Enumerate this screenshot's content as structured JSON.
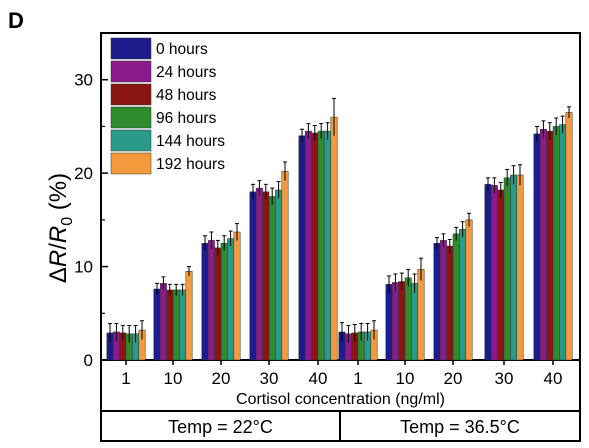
{
  "panel_label": "D",
  "chart_data": {
    "type": "bar",
    "ylabel": {
      "delta": "Δ",
      "r": "R",
      "slash": "/",
      "r0": "R",
      "sub": "0",
      "unit": " (%)"
    },
    "xlabel": "Cortisol concentration (ng/ml)",
    "ylim": [
      0,
      35
    ],
    "yticks": [
      0,
      10,
      20,
      30
    ],
    "groups": [
      {
        "label": "Temp = 22°C",
        "categories": [
          "1",
          "10",
          "20",
          "30",
          "40"
        ]
      },
      {
        "label": "Temp = 36.5°C",
        "categories": [
          "1",
          "10",
          "20",
          "30",
          "40"
        ]
      }
    ],
    "legend_position": "top-left",
    "series": [
      {
        "name": "0 hours",
        "color": "#1c1c8c",
        "values": [
          2.9,
          7.6,
          12.5,
          18.0,
          24.0,
          3.0,
          8.1,
          12.5,
          18.8,
          24.2
        ],
        "errors": [
          1.0,
          0.6,
          0.8,
          0.8,
          0.7,
          1.0,
          0.9,
          0.6,
          0.7,
          0.8
        ]
      },
      {
        "name": "24 hours",
        "color": "#8b1a8b",
        "values": [
          3.0,
          8.2,
          12.8,
          18.4,
          24.5,
          2.8,
          8.3,
          12.8,
          18.7,
          24.7
        ],
        "errors": [
          0.9,
          0.7,
          0.9,
          0.8,
          0.8,
          0.9,
          0.9,
          0.7,
          0.8,
          0.9
        ]
      },
      {
        "name": "48 hours",
        "color": "#8b1414",
        "values": [
          2.9,
          7.5,
          12.0,
          18.0,
          24.3,
          2.9,
          8.4,
          12.2,
          18.2,
          24.5
        ],
        "errors": [
          0.8,
          0.6,
          0.8,
          0.8,
          0.8,
          0.9,
          0.9,
          0.7,
          0.8,
          0.9
        ]
      },
      {
        "name": "96 hours",
        "color": "#2e8b2e",
        "values": [
          2.8,
          7.5,
          12.5,
          17.5,
          24.5,
          3.0,
          8.8,
          13.5,
          19.5,
          25.0
        ],
        "errors": [
          0.9,
          0.6,
          0.8,
          0.9,
          0.8,
          0.9,
          0.9,
          0.7,
          0.9,
          0.9
        ]
      },
      {
        "name": "144 hours",
        "color": "#2a9a8a",
        "values": [
          2.8,
          7.5,
          13.0,
          18.2,
          24.5,
          3.0,
          8.2,
          14.0,
          19.8,
          25.2
        ],
        "errors": [
          0.9,
          0.6,
          0.8,
          0.9,
          0.9,
          0.9,
          1.0,
          0.8,
          1.0,
          0.9
        ]
      },
      {
        "name": "192 hours",
        "color": "#f29a3c",
        "values": [
          3.2,
          9.5,
          13.7,
          20.2,
          26.0,
          3.2,
          9.7,
          15.0,
          19.8,
          26.5
        ],
        "errors": [
          1.0,
          0.5,
          0.9,
          1.0,
          2.0,
          1.0,
          1.2,
          0.7,
          1.1,
          0.6
        ]
      }
    ]
  }
}
